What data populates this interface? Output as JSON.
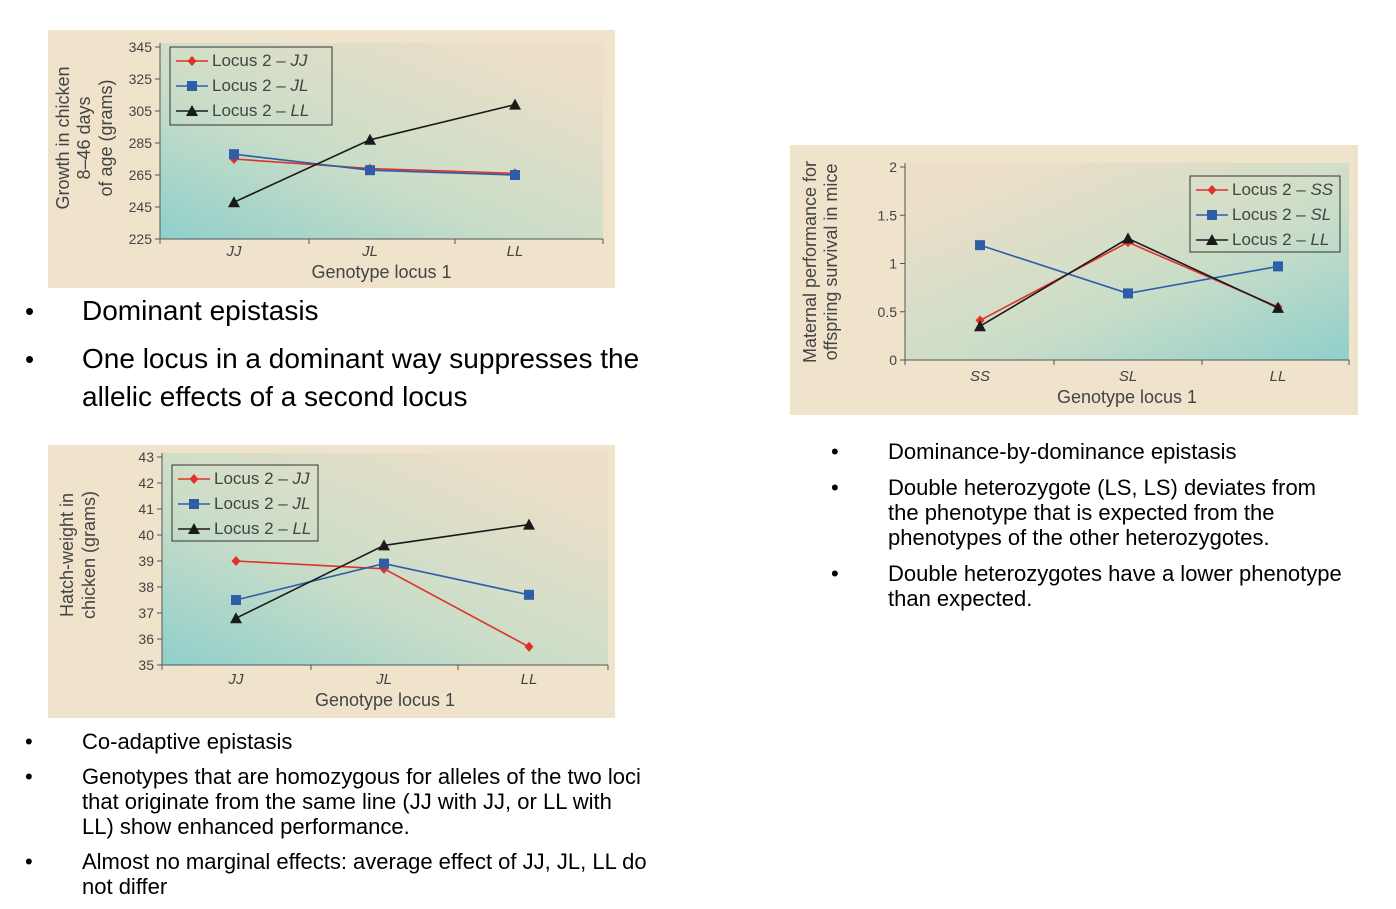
{
  "bullets_top": [
    "Dominant epistasis",
    "One locus in a dominant way suppresses the allelic effects of a second locus"
  ],
  "bullets_bottom": [
    "Co-adaptive epistasis",
    "Genotypes that are homozygous for alleles of the two loci that originate from the same line (JJ with JJ, or LL with LL) show enhanced performance.",
    "Almost no marginal effects: average effect of JJ, JL, LL do not differ"
  ],
  "bullets_right": [
    "Dominance-by-dominance epistasis",
    "Double heterozygote (LS, LS) deviates from the phenotype that is expected from the phenotypes of the other heterozygotes.",
    "Double heterozygotes have a lower phenotype than expected."
  ],
  "bullet_symbol": "•",
  "colors": {
    "red": "#e0312b",
    "blue": "#2e5ea8",
    "black": "#1a1a1a"
  },
  "chart_data": [
    {
      "id": "chart1",
      "type": "line",
      "ylabel": [
        "Growth in chicken",
        "8–46 days",
        "of age (grams)"
      ],
      "xlabel": "Genotype locus 1",
      "categories": [
        "JJ",
        "JL",
        "LL"
      ],
      "yticks": [
        225,
        245,
        265,
        285,
        305,
        325,
        345
      ],
      "ylim": [
        225,
        345
      ],
      "legend_placement": "top-left",
      "series": [
        {
          "prefix": "Locus 2 – ",
          "genotype": "JJ",
          "color": "#e0312b",
          "marker": "diamond",
          "values": [
            275,
            269,
            266
          ]
        },
        {
          "prefix": "Locus 2 – ",
          "genotype": "JL",
          "color": "#2e5ea8",
          "marker": "square",
          "values": [
            278,
            268,
            265
          ]
        },
        {
          "prefix": "Locus 2 – ",
          "genotype": "LL",
          "color": "#1a1a1a",
          "marker": "triangle",
          "values": [
            248,
            287,
            309
          ]
        }
      ]
    },
    {
      "id": "chart2",
      "type": "line",
      "ylabel": [
        "Hatch-weight in",
        "chicken (grams)"
      ],
      "xlabel": "Genotype locus 1",
      "categories": [
        "JJ",
        "JL",
        "LL"
      ],
      "yticks": [
        35,
        36,
        37,
        38,
        39,
        40,
        41,
        42,
        43
      ],
      "ylim": [
        35,
        43
      ],
      "legend_placement": "top-left",
      "series": [
        {
          "prefix": "Locus 2 – ",
          "genotype": "JJ",
          "color": "#e0312b",
          "marker": "diamond",
          "values": [
            39.0,
            38.7,
            35.7
          ]
        },
        {
          "prefix": "Locus 2 – ",
          "genotype": "JL",
          "color": "#2e5ea8",
          "marker": "square",
          "values": [
            37.5,
            38.9,
            37.7
          ]
        },
        {
          "prefix": "Locus 2 – ",
          "genotype": "LL",
          "color": "#1a1a1a",
          "marker": "triangle",
          "values": [
            36.8,
            39.6,
            40.4
          ]
        }
      ]
    },
    {
      "id": "chart3",
      "type": "line",
      "ylabel": [
        "Maternal performance for",
        "offspring survival in mice"
      ],
      "xlabel": "Genotype locus 1",
      "categories": [
        "SS",
        "SL",
        "LL"
      ],
      "yticks": [
        0,
        0.5,
        1,
        1.5,
        2
      ],
      "ylim": [
        0,
        2
      ],
      "legend_placement": "top-right",
      "series": [
        {
          "prefix": "Locus 2 – ",
          "genotype": "SS",
          "color": "#e0312b",
          "marker": "diamond",
          "values": [
            0.41,
            1.22,
            0.55
          ]
        },
        {
          "prefix": "Locus 2 – ",
          "genotype": "SL",
          "color": "#2e5ea8",
          "marker": "square",
          "values": [
            1.19,
            0.69,
            0.97
          ]
        },
        {
          "prefix": "Locus 2 – ",
          "genotype": "LL",
          "color": "#1a1a1a",
          "marker": "triangle",
          "values": [
            0.35,
            1.26,
            0.54
          ]
        }
      ]
    }
  ]
}
